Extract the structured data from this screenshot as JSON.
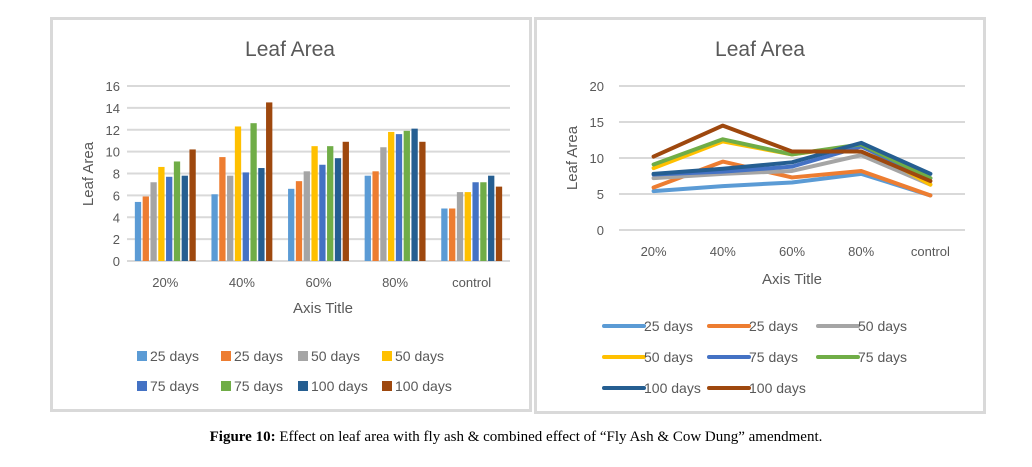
{
  "caption": {
    "label": "Figure 10:",
    "text": " Effect on leaf area with fly ash & combined effect of “Fly Ash & Cow Dung” amendment."
  },
  "chart_data": [
    {
      "type": "bar",
      "title": "Leaf Area",
      "xlabel": "Axis Title",
      "ylabel": "Leaf Area",
      "ylim": [
        0,
        16
      ],
      "yticks": [
        0,
        2,
        4,
        6,
        8,
        10,
        12,
        14,
        16
      ],
      "grid": true,
      "legend_position": "bottom",
      "categories": [
        "20%",
        "40%",
        "60%",
        "80%",
        "control"
      ],
      "series": [
        {
          "name": "25 days",
          "color": "#5b9bd5",
          "values": [
            5.4,
            6.1,
            6.6,
            7.8,
            4.8
          ]
        },
        {
          "name": "25 days",
          "color": "#ed7d31",
          "values": [
            5.9,
            9.5,
            7.3,
            8.2,
            4.8
          ]
        },
        {
          "name": "50 days",
          "color": "#a5a5a5",
          "values": [
            7.2,
            7.8,
            8.2,
            10.4,
            6.3
          ]
        },
        {
          "name": "50 days",
          "color": "#ffc000",
          "values": [
            8.6,
            12.3,
            10.5,
            11.8,
            6.3
          ]
        },
        {
          "name": "75 days",
          "color": "#4472c4",
          "values": [
            7.7,
            8.1,
            8.8,
            11.6,
            7.2
          ]
        },
        {
          "name": "75 days",
          "color": "#70ad47",
          "values": [
            9.1,
            12.6,
            10.5,
            11.9,
            7.2
          ]
        },
        {
          "name": "100 days",
          "color": "#255e91",
          "values": [
            7.8,
            8.5,
            9.4,
            12.1,
            7.8
          ]
        },
        {
          "name": "100 days",
          "color": "#9e480e",
          "values": [
            10.2,
            14.5,
            10.9,
            10.9,
            6.8
          ]
        }
      ]
    },
    {
      "type": "line",
      "title": "Leaf Area",
      "xlabel": "Axis Title",
      "ylabel": "Leaf Area",
      "ylim": [
        0,
        20
      ],
      "yticks": [
        0,
        5,
        10,
        15,
        20
      ],
      "grid": true,
      "legend_position": "bottom",
      "categories": [
        "20%",
        "40%",
        "60%",
        "80%",
        "control"
      ],
      "series": [
        {
          "name": "25 days",
          "color": "#5b9bd5",
          "values": [
            5.4,
            6.1,
            6.6,
            7.8,
            4.8
          ]
        },
        {
          "name": "25 days",
          "color": "#ed7d31",
          "values": [
            5.9,
            9.5,
            7.3,
            8.2,
            4.8
          ]
        },
        {
          "name": "50 days",
          "color": "#a5a5a5",
          "values": [
            7.2,
            7.8,
            8.2,
            10.4,
            6.3
          ]
        },
        {
          "name": "50 days",
          "color": "#ffc000",
          "values": [
            8.6,
            12.3,
            10.5,
            11.8,
            6.3
          ]
        },
        {
          "name": "75 days",
          "color": "#4472c4",
          "values": [
            7.7,
            8.1,
            8.8,
            11.6,
            7.2
          ]
        },
        {
          "name": "75 days",
          "color": "#70ad47",
          "values": [
            9.1,
            12.6,
            10.5,
            11.9,
            7.2
          ]
        },
        {
          "name": "100 days",
          "color": "#255e91",
          "values": [
            7.8,
            8.5,
            9.4,
            12.1,
            7.8
          ]
        },
        {
          "name": "100 days",
          "color": "#9e480e",
          "values": [
            10.2,
            14.5,
            10.9,
            10.9,
            6.8
          ]
        }
      ]
    }
  ]
}
